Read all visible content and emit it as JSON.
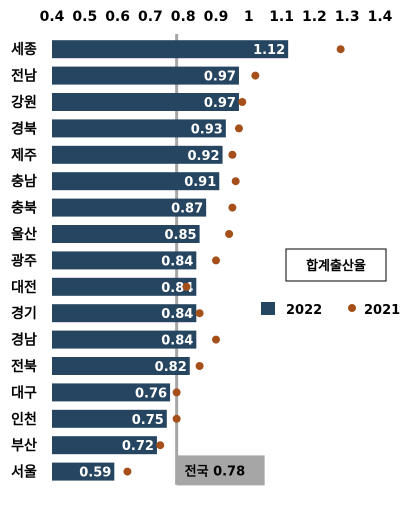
{
  "chart_data": {
    "type": "bar",
    "orientation": "horizontal",
    "title": "합계출산율",
    "categories": [
      "세종",
      "전남",
      "강원",
      "경북",
      "제주",
      "충남",
      "충북",
      "울산",
      "광주",
      "대전",
      "경기",
      "경남",
      "전북",
      "대구",
      "인천",
      "부산",
      "서울"
    ],
    "series": [
      {
        "name": "2022",
        "type": "bar",
        "color": "#264560",
        "values": [
          1.12,
          0.97,
          0.97,
          0.93,
          0.92,
          0.91,
          0.87,
          0.85,
          0.84,
          0.84,
          0.84,
          0.84,
          0.82,
          0.76,
          0.75,
          0.72,
          0.59
        ],
        "labels": [
          "1.12",
          "0.97",
          "0.97",
          "0.93",
          "0.92",
          "0.91",
          "0.87",
          "0.85",
          "0.84",
          "0.84",
          "0.84",
          "0.84",
          "0.82",
          "0.76",
          "0.75",
          "0.72",
          "0.59"
        ]
      },
      {
        "name": "2021",
        "type": "scatter",
        "color": "#A5501A",
        "values": [
          1.28,
          1.02,
          0.98,
          0.97,
          0.95,
          0.96,
          0.95,
          0.94,
          0.9,
          0.81,
          0.85,
          0.9,
          0.85,
          0.78,
          0.78,
          0.73,
          0.63
        ]
      }
    ],
    "xlim": [
      0.4,
      1.4
    ],
    "xticks": [
      "0.4",
      "0.5",
      "0.6",
      "0.7",
      "0.8",
      "0.9",
      "1",
      "1.1",
      "1.2",
      "1.3",
      "1.4"
    ],
    "xaxis_position": "top",
    "grid": false,
    "legend_position": "right",
    "reference_line": {
      "value": 0.78,
      "label": "전국 0.78",
      "color": "#A6A6A6"
    }
  }
}
